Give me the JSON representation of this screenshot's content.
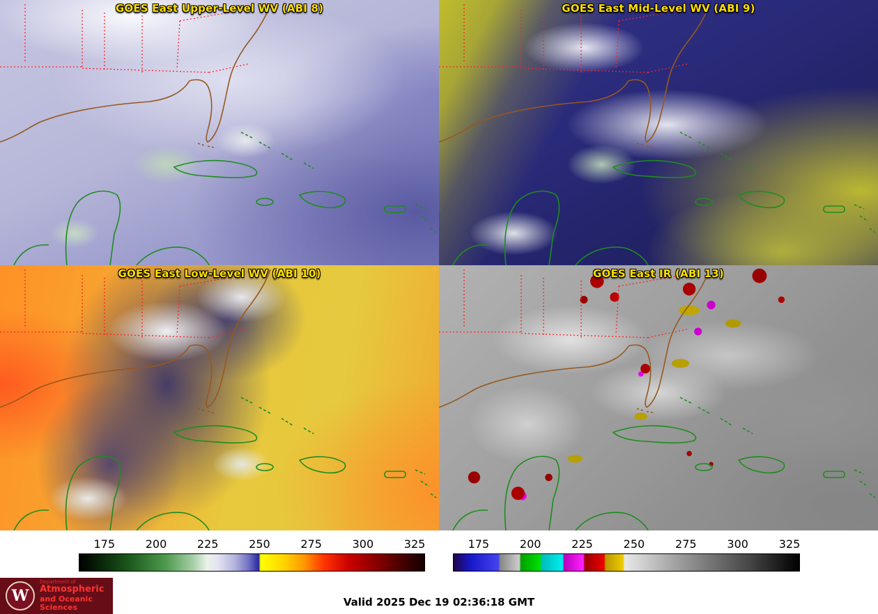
{
  "panels": [
    {
      "title": "GOES East Upper-Level WV (ABI 8)"
    },
    {
      "title": "GOES East Mid-Level WV (ABI 9)"
    },
    {
      "title": "GOES East Low-Level WV (ABI 10)"
    },
    {
      "title": "GOES East IR (ABI 13)"
    }
  ],
  "colorbars": {
    "wv": {
      "label": "water-vapor-brightness-temperature-scale",
      "ticks": [
        "175",
        "200",
        "225",
        "250",
        "275",
        "300",
        "325"
      ],
      "range_kelvin": [
        170,
        330
      ],
      "stops": [
        [
          "#000000",
          0
        ],
        [
          "#0a2a0a",
          7
        ],
        [
          "#1e5c1e",
          15
        ],
        [
          "#4e9a4e",
          25
        ],
        [
          "#a8cfa8",
          33
        ],
        [
          "#e9f2e9",
          37
        ],
        [
          "#e4e4f2",
          40
        ],
        [
          "#b4b4de",
          45
        ],
        [
          "#7272c4",
          49
        ],
        [
          "#2828a0",
          52
        ],
        [
          "#ffff00",
          52.5
        ],
        [
          "#ffd700",
          59
        ],
        [
          "#ff9900",
          65
        ],
        [
          "#ff3300",
          71
        ],
        [
          "#cc0000",
          78
        ],
        [
          "#880000",
          86
        ],
        [
          "#3a0000",
          95
        ],
        [
          "#160000",
          100
        ]
      ]
    },
    "ir": {
      "label": "infrared-brightness-temperature-scale",
      "ticks": [
        "175",
        "200",
        "225",
        "250",
        "275",
        "300",
        "325"
      ],
      "range_kelvin": [
        170,
        330
      ],
      "stops": [
        [
          "#20064a",
          0
        ],
        [
          "#1818cc",
          5
        ],
        [
          "#4444ee",
          13
        ],
        [
          "#888888",
          13.5
        ],
        [
          "#cccccc",
          19
        ],
        [
          "#00a000",
          19.5
        ],
        [
          "#00e000",
          25
        ],
        [
          "#00bbbb",
          25.5
        ],
        [
          "#00eeee",
          31.5
        ],
        [
          "#bb00bb",
          32
        ],
        [
          "#ff22ff",
          37.5
        ],
        [
          "#990000",
          38
        ],
        [
          "#ee0000",
          43.5
        ],
        [
          "#bb9900",
          44
        ],
        [
          "#eecc00",
          49
        ],
        [
          "#e8e8e8",
          49.5
        ],
        [
          "#999999",
          66
        ],
        [
          "#444444",
          86
        ],
        [
          "#000000",
          100
        ]
      ]
    }
  },
  "footer": {
    "valid_time": "Valid 2025 Dec 19 02:36:18 GMT"
  },
  "logo": {
    "dept": "Department of",
    "line1": "Atmospheric",
    "line2": "and Oceanic Sciences",
    "crest_letter": "W"
  },
  "colors": {
    "panel_title": "#ffdf00",
    "state_border": "#ff2222",
    "us_coastline": "#96581e",
    "intl_coastline": "#1e8c1e",
    "logo_background": "#670d17",
    "logo_text": "#ff3232"
  }
}
